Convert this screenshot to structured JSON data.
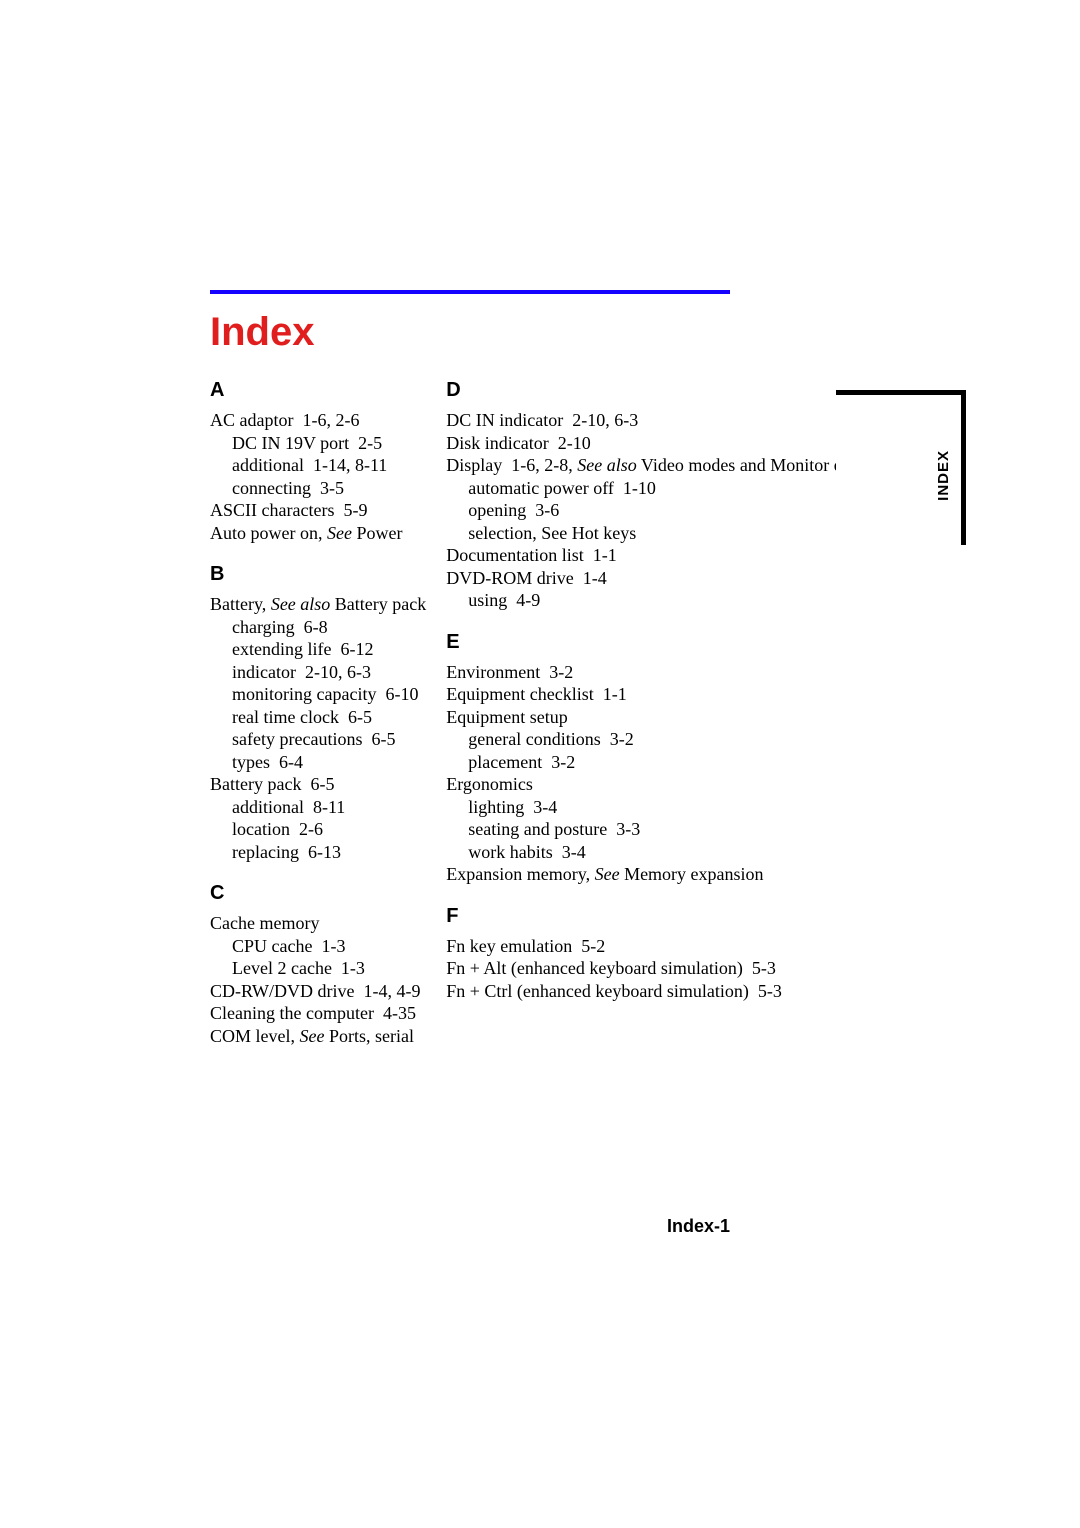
{
  "title": "Index",
  "tab_label": "INDEX",
  "page_number": "Index-1",
  "columns": {
    "left": [
      {
        "type": "letter",
        "text": "A",
        "first": true
      },
      {
        "type": "entry",
        "segments": [
          {
            "t": "AC adaptor  1-6, 2-6"
          }
        ]
      },
      {
        "type": "sub",
        "segments": [
          {
            "t": "DC IN 19V port  2-5"
          }
        ]
      },
      {
        "type": "sub",
        "segments": [
          {
            "t": "additional  1-14, 8-11"
          }
        ]
      },
      {
        "type": "sub",
        "segments": [
          {
            "t": "connecting  3-5"
          }
        ]
      },
      {
        "type": "entry",
        "segments": [
          {
            "t": "ASCII characters  5-9"
          }
        ]
      },
      {
        "type": "entry",
        "segments": [
          {
            "t": "Auto power on, "
          },
          {
            "t": "See",
            "italic": true
          },
          {
            "t": " Power"
          }
        ]
      },
      {
        "type": "letter",
        "text": "B"
      },
      {
        "type": "entry",
        "segments": [
          {
            "t": "Battery, "
          },
          {
            "t": "See also",
            "italic": true
          },
          {
            "t": " Battery pack"
          }
        ]
      },
      {
        "type": "sub",
        "segments": [
          {
            "t": "charging  6-8"
          }
        ]
      },
      {
        "type": "sub",
        "segments": [
          {
            "t": "extending life  6-12"
          }
        ]
      },
      {
        "type": "sub",
        "segments": [
          {
            "t": "indicator  2-10, 6-3"
          }
        ]
      },
      {
        "type": "sub",
        "segments": [
          {
            "t": "monitoring capacity  6-10"
          }
        ]
      },
      {
        "type": "sub",
        "segments": [
          {
            "t": "real time clock  6-5"
          }
        ]
      },
      {
        "type": "sub",
        "segments": [
          {
            "t": "safety precautions  6-5"
          }
        ]
      },
      {
        "type": "sub",
        "segments": [
          {
            "t": "types  6-4"
          }
        ]
      },
      {
        "type": "entry",
        "segments": [
          {
            "t": "Battery pack  6-5"
          }
        ]
      },
      {
        "type": "sub",
        "segments": [
          {
            "t": "additional  8-11"
          }
        ]
      },
      {
        "type": "sub",
        "segments": [
          {
            "t": "location  2-6"
          }
        ]
      },
      {
        "type": "sub",
        "segments": [
          {
            "t": "replacing  6-13"
          }
        ]
      },
      {
        "type": "letter",
        "text": "C"
      },
      {
        "type": "entry",
        "segments": [
          {
            "t": "Cache memory"
          }
        ]
      },
      {
        "type": "sub",
        "segments": [
          {
            "t": "CPU cache  1-3"
          }
        ]
      },
      {
        "type": "sub",
        "segments": [
          {
            "t": "Level 2 cache  1-3"
          }
        ]
      },
      {
        "type": "entry",
        "segments": [
          {
            "t": "CD-RW/DVD drive  1-4, 4-9"
          }
        ]
      },
      {
        "type": "entry",
        "segments": [
          {
            "t": "Cleaning the computer  4-35"
          }
        ]
      },
      {
        "type": "entry",
        "segments": [
          {
            "t": "COM level, "
          },
          {
            "t": "See",
            "italic": true
          },
          {
            "t": " Ports, serial"
          }
        ]
      }
    ],
    "right": [
      {
        "type": "letter",
        "text": "D",
        "first": true
      },
      {
        "type": "entry",
        "segments": [
          {
            "t": "DC IN indicator  2-10, 6-3"
          }
        ]
      },
      {
        "type": "entry",
        "segments": [
          {
            "t": "Disk indicator  2-10"
          }
        ]
      },
      {
        "type": "entry",
        "segments": [
          {
            "t": "Display  1-6, 2-8, "
          },
          {
            "t": "See also",
            "italic": true
          },
          {
            "t": " Video modes and Monitor external"
          }
        ]
      },
      {
        "type": "sub",
        "segments": [
          {
            "t": "automatic power off  1-10"
          }
        ]
      },
      {
        "type": "sub",
        "segments": [
          {
            "t": "opening  3-6"
          }
        ]
      },
      {
        "type": "sub",
        "segments": [
          {
            "t": "selection, See Hot keys"
          }
        ]
      },
      {
        "type": "entry",
        "segments": [
          {
            "t": "Documentation list  1-1"
          }
        ]
      },
      {
        "type": "entry",
        "segments": [
          {
            "t": "DVD-ROM drive  1-4"
          }
        ]
      },
      {
        "type": "sub",
        "segments": [
          {
            "t": "using  4-9"
          }
        ]
      },
      {
        "type": "letter",
        "text": "E"
      },
      {
        "type": "entry",
        "segments": [
          {
            "t": "Environment  3-2"
          }
        ]
      },
      {
        "type": "entry",
        "segments": [
          {
            "t": "Equipment checklist  1-1"
          }
        ]
      },
      {
        "type": "entry",
        "segments": [
          {
            "t": "Equipment setup"
          }
        ]
      },
      {
        "type": "sub",
        "segments": [
          {
            "t": "general conditions  3-2"
          }
        ]
      },
      {
        "type": "sub",
        "segments": [
          {
            "t": "placement  3-2"
          }
        ]
      },
      {
        "type": "entry",
        "segments": [
          {
            "t": "Ergonomics"
          }
        ]
      },
      {
        "type": "sub",
        "segments": [
          {
            "t": "lighting  3-4"
          }
        ]
      },
      {
        "type": "sub",
        "segments": [
          {
            "t": "seating and posture  3-3"
          }
        ]
      },
      {
        "type": "sub",
        "segments": [
          {
            "t": "work habits  3-4"
          }
        ]
      },
      {
        "type": "entry",
        "segments": [
          {
            "t": "Expansion memory, "
          },
          {
            "t": "See",
            "italic": true
          },
          {
            "t": " Memory expansion"
          }
        ]
      },
      {
        "type": "letter",
        "text": "F"
      },
      {
        "type": "entry",
        "segments": [
          {
            "t": "Fn key emulation  5-2"
          }
        ]
      },
      {
        "type": "entry",
        "segments": [
          {
            "t": "Fn + Alt (enhanced keyboard simulation)  5-3"
          }
        ]
      },
      {
        "type": "entry",
        "segments": [
          {
            "t": "Fn + Ctrl (enhanced keyboard simulation)  5-3"
          }
        ]
      }
    ]
  }
}
